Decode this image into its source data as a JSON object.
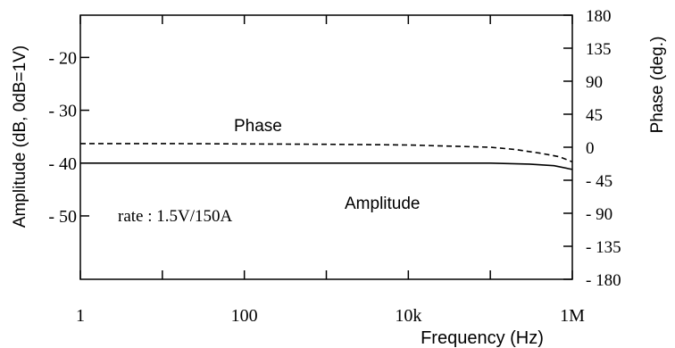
{
  "chart_data": {
    "type": "line",
    "x_scale": "log",
    "xlabel": "Frequency  (Hz)",
    "y_left_label": "Amplitude (dB, 0dB=1V)",
    "y_right_label": "Phase (deg.)",
    "x_ticks": [
      {
        "value": 1,
        "label": "1"
      },
      {
        "value": 100,
        "label": "100"
      },
      {
        "value": 10000,
        "label": "10k"
      },
      {
        "value": 1000000,
        "label": "1M"
      }
    ],
    "x_minor_ticks": [
      10,
      1000,
      100000
    ],
    "xlim": [
      1,
      1000000
    ],
    "y_left_ticks": [
      {
        "value": -20,
        "label": "- 20"
      },
      {
        "value": -30,
        "label": "- 30"
      },
      {
        "value": -40,
        "label": "- 40"
      },
      {
        "value": -50,
        "label": "- 50"
      }
    ],
    "y_left_lim": [
      -62,
      -12
    ],
    "y_right_ticks": [
      {
        "value": 180,
        "label": "180"
      },
      {
        "value": 135,
        "label": "135"
      },
      {
        "value": 90,
        "label": "90"
      },
      {
        "value": 45,
        "label": "45"
      },
      {
        "value": 0,
        "label": "0"
      },
      {
        "value": -45,
        "label": "- 45"
      },
      {
        "value": -90,
        "label": "- 90"
      },
      {
        "value": -135,
        "label": "- 135"
      },
      {
        "value": -180,
        "label": "- 180"
      }
    ],
    "y_right_lim": [
      -180,
      180
    ],
    "series": [
      {
        "name": "Phase",
        "axis": "right",
        "style": "dashed",
        "color": "#000000",
        "x": [
          1,
          10,
          100,
          1000,
          10000,
          100000,
          200000,
          400000,
          700000,
          1000000
        ],
        "y": [
          5,
          5,
          4.5,
          4,
          3,
          0,
          -3,
          -8,
          -13,
          -20
        ]
      },
      {
        "name": "Amplitude",
        "axis": "left",
        "style": "solid",
        "color": "#000000",
        "x": [
          1,
          10,
          100,
          1000,
          10000,
          100000,
          300000,
          600000,
          1000000
        ],
        "y": [
          -40,
          -40,
          -40,
          -40,
          -40,
          -40,
          -40.2,
          -40.5,
          -41.2
        ]
      }
    ],
    "annotations": [
      {
        "text": "Phase",
        "series": "Phase"
      },
      {
        "text": "Amplitude",
        "series": "Amplitude"
      },
      {
        "text": "rate : 1.5V/150A"
      }
    ],
    "grid": false,
    "legend": "none"
  }
}
